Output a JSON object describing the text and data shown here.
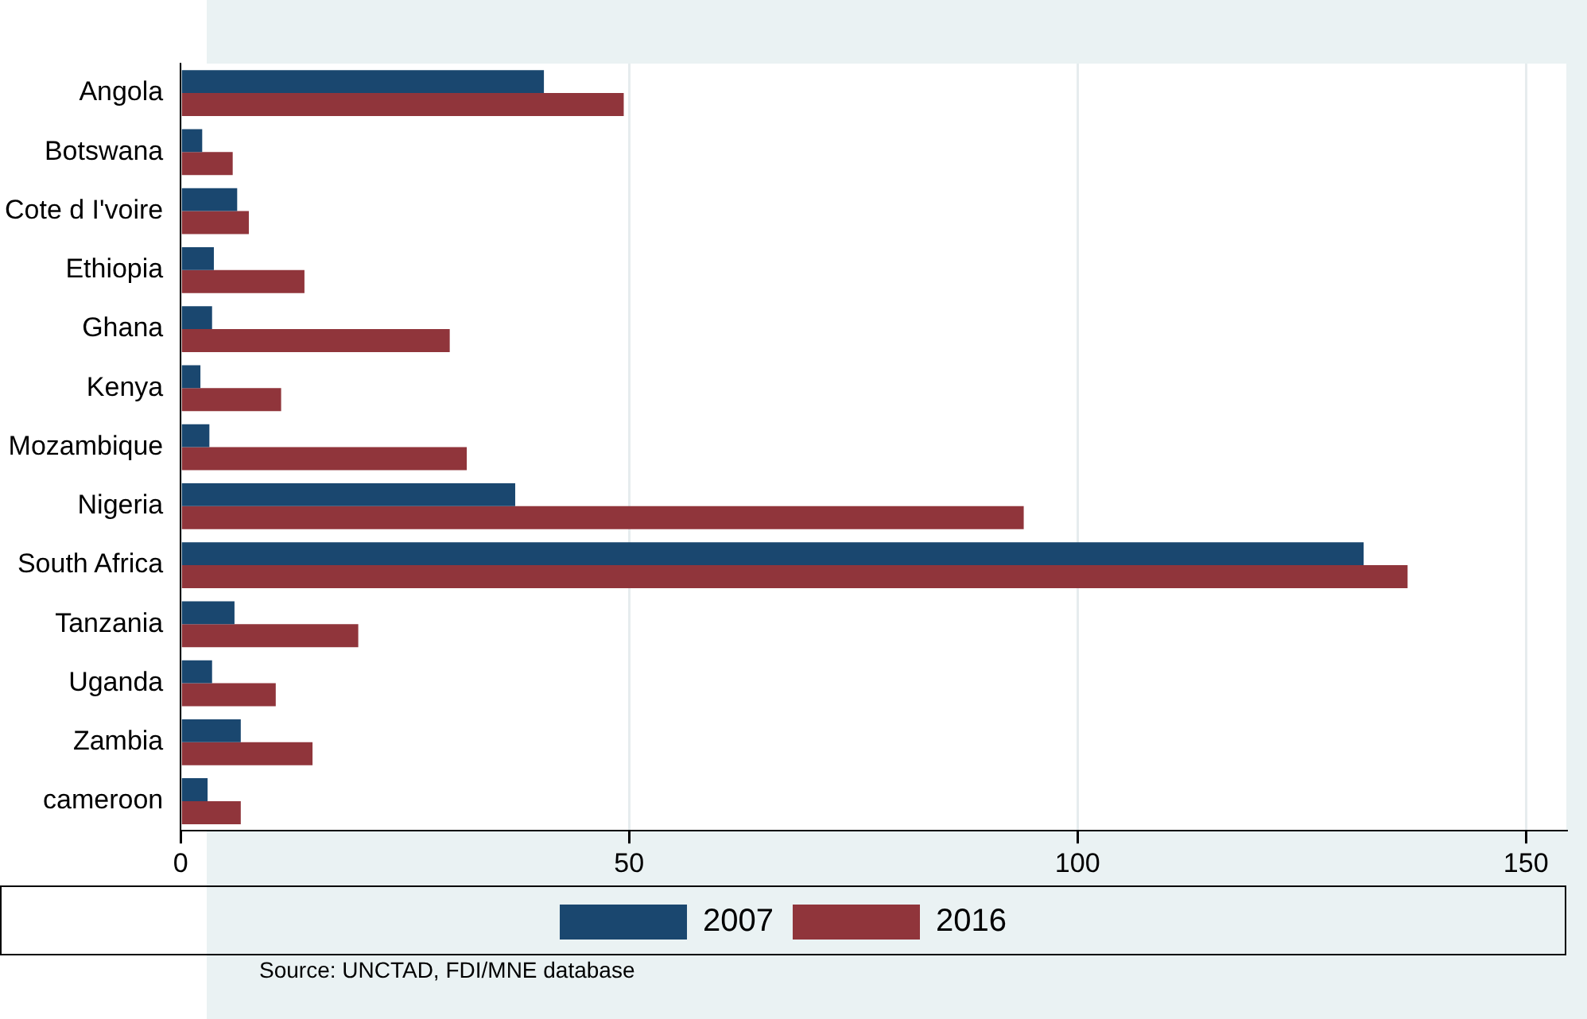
{
  "chart_data": {
    "type": "bar",
    "orientation": "horizontal",
    "categories": [
      "Angola",
      "Botswana",
      "Cote d I'voire",
      "Ethiopia",
      "Ghana",
      "Kenya",
      "Mozambique",
      "Nigeria",
      "South Africa",
      "Tanzania",
      "Uganda",
      "Zambia",
      "cameroon"
    ],
    "series": [
      {
        "name": "2007",
        "color": "#1a476f",
        "values": [
          40.5,
          2.4,
          6.3,
          3.7,
          3.5,
          2.2,
          3.2,
          37.3,
          131.9,
          6,
          3.5,
          6.7,
          3
        ]
      },
      {
        "name": "2016",
        "color": "#90353b",
        "values": [
          49.4,
          5.8,
          7.6,
          13.8,
          30,
          11.2,
          31.9,
          94,
          136.8,
          19.8,
          10.6,
          14.7,
          6.7
        ]
      }
    ],
    "xlim": [
      0,
      154.5
    ],
    "xticks": [
      0,
      50,
      100,
      150
    ],
    "grid": "x",
    "legend": "bottom",
    "annotations": [
      "Source: UNCTAD, FDI/MNE database"
    ]
  }
}
